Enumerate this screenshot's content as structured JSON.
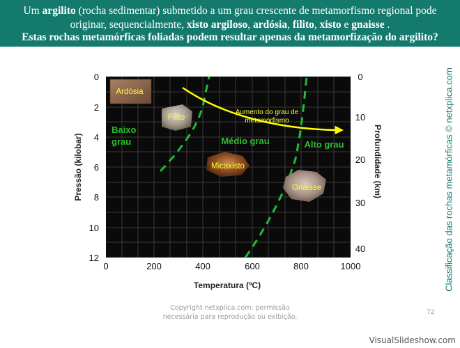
{
  "header": {
    "line1_parts": [
      "Um ",
      "argilito",
      " (rocha sedimentar) submetido a um grau crescente de metamorfismo regional pode"
    ],
    "line2_parts": [
      "originar, sequencialmente, ",
      "xisto argiloso",
      ", ",
      "ardósia",
      ", ",
      "filito",
      ", ",
      "xisto",
      " e ",
      "gnaisse",
      " ."
    ],
    "line3": "Estas rochas metamórficas foliadas podem resultar apenas da metamorfização do argilito?"
  },
  "diagram": {
    "x_axis_title": "Temperatura (ºC)",
    "x_ticks": [
      "0",
      "200",
      "400",
      "600",
      "800",
      "1000"
    ],
    "y_left_title": "Pressão (kilobar)",
    "y_left_ticks": [
      "0",
      "2",
      "4",
      "6",
      "8",
      "10",
      "12"
    ],
    "y_right_title": "Profundidade (km)",
    "y_right_ticks": [
      "0",
      "10",
      "20",
      "30",
      "40"
    ],
    "zones": {
      "low": [
        "Baixo",
        "grau"
      ],
      "medium": "Médio grau",
      "high": "Alto grau"
    },
    "arrow_label": [
      "Aumento do grau de",
      "metamorfismo"
    ],
    "rocks": {
      "ardosia": "Ardósia",
      "filito": "Filito",
      "micaxisto": "Micaxisto",
      "gnaisse": "Gnaisse"
    },
    "colors": {
      "plot_bg": "#0a0a0a",
      "grid": "#3a3a3a",
      "boundary": "#22bb33",
      "zone_text": "#29c02a",
      "rock_text": "#ffff33",
      "arrow": "#ffff00"
    }
  },
  "sidebar_credit": "Classificação das rochas metamórficas © netxplica.com",
  "footer": {
    "copyright_lines": [
      "Copyright netxplica.com: permissão",
      "necessária para reprodução ou exibição."
    ],
    "page_number": "72"
  },
  "watermark": "VisualSlideshow.com"
}
